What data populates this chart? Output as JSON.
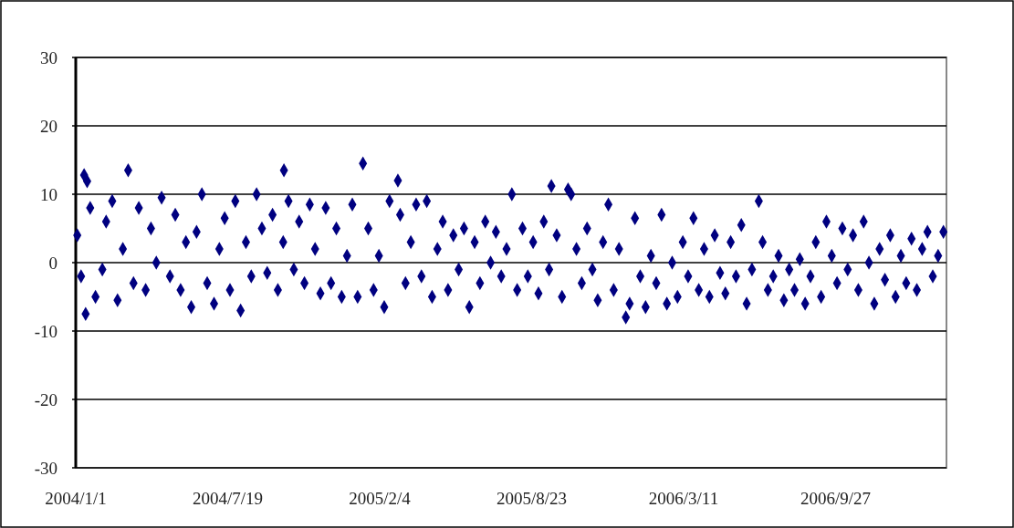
{
  "chart_data": {
    "type": "scatter",
    "marker": "diamond",
    "grid": "y",
    "xlim": [
      "2004-01-01",
      "2007-02-20"
    ],
    "xticks": [
      {
        "value": "2004-01-01",
        "label": "2004/1/1"
      },
      {
        "value": "2004-07-19",
        "label": "2004/7/19"
      },
      {
        "value": "2005-02-04",
        "label": "2005/2/4"
      },
      {
        "value": "2005-08-23",
        "label": "2005/8/23"
      },
      {
        "value": "2006-03-11",
        "label": "2006/3/11"
      },
      {
        "value": "2006-09-27",
        "label": "2006/9/27"
      }
    ],
    "ylim": [
      -30,
      30
    ],
    "yticks": [
      -30,
      -20,
      -10,
      0,
      10,
      20,
      30
    ],
    "series": [
      {
        "color": "#000080",
        "x": [
          "2004-01-03",
          "2004-01-08",
          "2004-01-12",
          "2004-01-14",
          "2004-01-16",
          "2004-01-20",
          "2004-01-27",
          "2004-02-05",
          "2004-02-10",
          "2004-02-18",
          "2004-02-25",
          "2004-03-03",
          "2004-03-10",
          "2004-03-17",
          "2004-03-24",
          "2004-04-02",
          "2004-04-09",
          "2004-04-16",
          "2004-04-23",
          "2004-05-04",
          "2004-05-11",
          "2004-05-18",
          "2004-05-25",
          "2004-06-01",
          "2004-06-08",
          "2004-06-15",
          "2004-06-22",
          "2004-07-01",
          "2004-07-08",
          "2004-07-15",
          "2004-07-22",
          "2004-07-29",
          "2004-08-05",
          "2004-08-12",
          "2004-08-19",
          "2004-08-26",
          "2004-09-02",
          "2004-09-09",
          "2004-09-16",
          "2004-09-23",
          "2004-09-30",
          "2004-10-01",
          "2004-10-07",
          "2004-10-14",
          "2004-10-21",
          "2004-10-28",
          "2004-11-04",
          "2004-11-11",
          "2004-11-18",
          "2004-11-25",
          "2004-12-02",
          "2004-12-09",
          "2004-12-16",
          "2004-12-23",
          "2004-12-30",
          "2005-01-06",
          "2005-01-13",
          "2005-01-20",
          "2005-01-27",
          "2005-02-03",
          "2005-02-10",
          "2005-02-17",
          "2005-02-28",
          "2005-03-03",
          "2005-03-10",
          "2005-03-17",
          "2005-03-24",
          "2005-03-31",
          "2005-04-07",
          "2005-04-14",
          "2005-04-21",
          "2005-04-28",
          "2005-05-05",
          "2005-05-12",
          "2005-05-19",
          "2005-05-26",
          "2005-06-02",
          "2005-06-09",
          "2005-06-16",
          "2005-06-23",
          "2005-06-30",
          "2005-07-07",
          "2005-07-14",
          "2005-07-21",
          "2005-07-28",
          "2005-08-04",
          "2005-08-11",
          "2005-08-18",
          "2005-08-25",
          "2005-09-01",
          "2005-09-08",
          "2005-09-15",
          "2005-09-18",
          "2005-09-25",
          "2005-10-02",
          "2005-10-10",
          "2005-10-14",
          "2005-10-21",
          "2005-10-28",
          "2005-11-04",
          "2005-11-11",
          "2005-11-18",
          "2005-11-25",
          "2005-12-02",
          "2005-12-09",
          "2005-12-16",
          "2005-12-25",
          "2005-12-30",
          "2006-01-06",
          "2006-01-13",
          "2006-01-20",
          "2006-01-27",
          "2006-02-03",
          "2006-02-10",
          "2006-02-17",
          "2006-02-24",
          "2006-03-03",
          "2006-03-10",
          "2006-03-17",
          "2006-03-24",
          "2006-03-31",
          "2006-04-07",
          "2006-04-14",
          "2006-04-21",
          "2006-04-28",
          "2006-05-05",
          "2006-05-12",
          "2006-05-19",
          "2006-05-26",
          "2006-06-02",
          "2006-06-09",
          "2006-06-18",
          "2006-06-23",
          "2006-06-30",
          "2006-07-07",
          "2006-07-14",
          "2006-07-21",
          "2006-07-28",
          "2006-08-04",
          "2006-08-11",
          "2006-08-18",
          "2006-08-25",
          "2006-09-01",
          "2006-09-08",
          "2006-09-15",
          "2006-09-22",
          "2006-09-29",
          "2006-10-06",
          "2006-10-13",
          "2006-10-20",
          "2006-10-27",
          "2006-11-03",
          "2006-11-10",
          "2006-11-17",
          "2006-11-24",
          "2006-12-01",
          "2006-12-08",
          "2006-12-15",
          "2006-12-22",
          "2006-12-29",
          "2007-01-05",
          "2007-01-12",
          "2007-01-19",
          "2007-01-26",
          "2007-02-02",
          "2007-02-09",
          "2007-02-16"
        ],
        "values": [
          4,
          -2,
          12.8,
          -7.5,
          11.9,
          8,
          -5,
          -1,
          6,
          9,
          -5.5,
          2,
          13.5,
          -3,
          8,
          -4,
          5,
          0,
          9.5,
          -2,
          7,
          -4,
          3,
          -6.5,
          4.5,
          10,
          -3,
          -6,
          2,
          6.5,
          -4,
          9,
          -7,
          3,
          -2,
          10,
          5,
          -1.5,
          7,
          -4,
          3,
          13.5,
          9,
          -1,
          6,
          -3,
          8.5,
          2,
          -4.5,
          8,
          -3,
          5,
          -5,
          1,
          8.5,
          -5,
          14.5,
          5,
          -4,
          1,
          -6.5,
          9,
          12,
          7,
          -3,
          3,
          8.5,
          -2,
          9,
          -5,
          2,
          6,
          -4,
          4,
          -1,
          5,
          -6.5,
          3,
          -3,
          6,
          0,
          4.5,
          -2,
          2,
          10,
          -4,
          5,
          -2,
          3,
          -4.5,
          6,
          -1,
          11.2,
          4,
          -5,
          10.7,
          10,
          2,
          -3,
          5,
          -1,
          -5.5,
          3,
          8.5,
          -4,
          2,
          -8,
          -6,
          6.5,
          -2,
          -6.5,
          1,
          -3,
          7,
          -6,
          0,
          -5,
          3,
          -2,
          6.5,
          -4,
          2,
          -5,
          4,
          -1.5,
          -4.5,
          3,
          -2,
          5.5,
          -6,
          -1,
          9,
          3,
          -4,
          -2,
          1,
          -5.5,
          -1,
          -4,
          0.5,
          -6,
          -2,
          3,
          -5,
          6,
          1,
          -3,
          5,
          -1,
          4,
          -4,
          6,
          0,
          -6,
          2,
          -2.5,
          4,
          -5,
          1,
          -3,
          3.5,
          -4,
          2,
          4.5,
          -2,
          1,
          4.5
        ]
      }
    ]
  }
}
